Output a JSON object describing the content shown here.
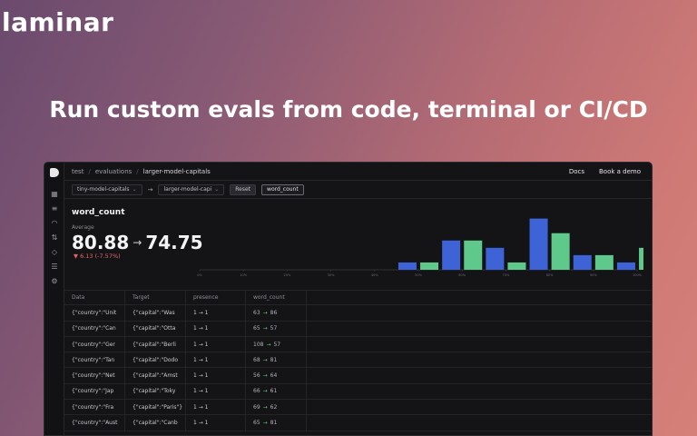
{
  "brand": {
    "logo_text": "laminar"
  },
  "headline": "Run custom evals from code, terminal or CI/CD",
  "app": {
    "breadcrumb": [
      "test",
      "evaluations",
      "larger-model-capitals"
    ],
    "top_links": [
      "Docs",
      "Book a demo"
    ],
    "rail_icons": [
      "dashboard-icon",
      "database-icon",
      "gauge-icon",
      "swap-icon",
      "diamond-icon",
      "stack-icon",
      "settings-icon"
    ],
    "selectors": {
      "left_eval": "tiny-model-capitals",
      "right_eval": "larger-model-capi",
      "reset_label": "Reset",
      "metric": "word_count"
    },
    "stat": {
      "title": "word_count",
      "avg_label": "Average",
      "from": "80.88",
      "to": "74.75",
      "delta": "▼ 6.13 (-7.57%)"
    },
    "table": {
      "headers": [
        "Data",
        "Target",
        "presence",
        "word_count"
      ],
      "rows": [
        {
          "data": "{\"country\":\"Unit",
          "target": "{\"capital\":\"Was",
          "presence": "1 → 1",
          "wc_from": "63",
          "wc_to": "86",
          "dir": "up"
        },
        {
          "data": "{\"country\":\"Can",
          "target": "{\"capital\":\"Otta",
          "presence": "1 → 1",
          "wc_from": "65",
          "wc_to": "57",
          "dir": "up"
        },
        {
          "data": "{\"country\":\"Ger",
          "target": "{\"capital\":\"Berli",
          "presence": "1 → 1",
          "wc_from": "108",
          "wc_to": "57",
          "dir": "up"
        },
        {
          "data": "{\"country\":\"Tan",
          "target": "{\"capital\":\"Dodo",
          "presence": "1 → 1",
          "wc_from": "68",
          "wc_to": "81",
          "dir": "up"
        },
        {
          "data": "{\"country\":\"Net",
          "target": "{\"capital\":\"Amst",
          "presence": "1 → 1",
          "wc_from": "56",
          "wc_to": "64",
          "dir": "up"
        },
        {
          "data": "{\"country\":\"Jap",
          "target": "{\"capital\":\"Toky",
          "presence": "1 → 1",
          "wc_from": "66",
          "wc_to": "61",
          "dir": "up"
        },
        {
          "data": "{\"country\":\"Fra",
          "target": "{\"capital\":\"Paris\"}",
          "presence": "1 → 1",
          "wc_from": "69",
          "wc_to": "62",
          "dir": "up"
        },
        {
          "data": "{\"country\":\"Aust",
          "target": "{\"capital\":\"Canb",
          "presence": "1 → 1",
          "wc_from": "65",
          "wc_to": "81",
          "dir": "up"
        }
      ]
    }
  },
  "chart_data": {
    "type": "bar",
    "categories": [
      "0%",
      "10%",
      "20%",
      "30%",
      "40%",
      "50%",
      "60%",
      "70%",
      "80%",
      "90%",
      "100%"
    ],
    "series": [
      {
        "color": "#5ec98a",
        "values": [
          0,
          0,
          0,
          0,
          0,
          1,
          4,
          1,
          5,
          2,
          3
        ]
      },
      {
        "color": "#3d63d6",
        "values": [
          0,
          0,
          0,
          0,
          1,
          4,
          3,
          7,
          2,
          1,
          0
        ]
      }
    ],
    "ylim": [
      0,
      7.2
    ],
    "grid": false
  }
}
